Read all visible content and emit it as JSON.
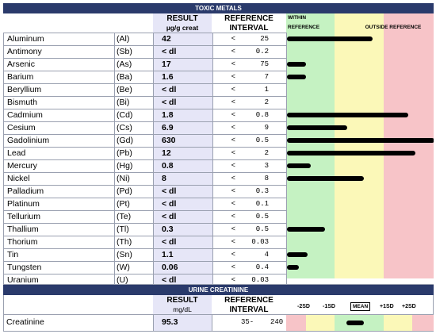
{
  "toxic": {
    "title": "TOXIC METALS",
    "result_label": "RESULT",
    "result_unit": "µg/g creat",
    "ref_label": "REFERENCE",
    "ref_label2": "INTERVAL",
    "within_label": "WITHIN",
    "within_label2": "REFERENCE",
    "outside_label": "OUTSIDE REFERENCE",
    "rows": [
      {
        "name": "Aluminum",
        "symbol": "(Al)",
        "result": "42",
        "cmp": "<",
        "ref": "25",
        "level": 0.58
      },
      {
        "name": "Antimony",
        "symbol": "(Sb)",
        "result": "< dl",
        "cmp": "<",
        "ref": "0.2",
        "level": 0
      },
      {
        "name": "Arsenic",
        "symbol": "(As)",
        "result": "17",
        "cmp": "<",
        "ref": "75",
        "level": 0.13
      },
      {
        "name": "Barium",
        "symbol": "(Ba)",
        "result": "1.6",
        "cmp": "<",
        "ref": "7",
        "level": 0.13
      },
      {
        "name": "Beryllium",
        "symbol": "(Be)",
        "result": "< dl",
        "cmp": "<",
        "ref": "1",
        "level": 0
      },
      {
        "name": "Bismuth",
        "symbol": "(Bi)",
        "result": "< dl",
        "cmp": "<",
        "ref": "2",
        "level": 0
      },
      {
        "name": "Cadmium",
        "symbol": "(Cd)",
        "result": "1.8",
        "cmp": "<",
        "ref": "0.8",
        "level": 0.82
      },
      {
        "name": "Cesium",
        "symbol": "(Cs)",
        "result": "6.9",
        "cmp": "<",
        "ref": "9",
        "level": 0.41
      },
      {
        "name": "Gadolinium",
        "symbol": "(Gd)",
        "result": "630",
        "cmp": "<",
        "ref": "0.5",
        "level": 1.0
      },
      {
        "name": "Lead",
        "symbol": "(Pb)",
        "result": "12",
        "cmp": "<",
        "ref": "2",
        "level": 0.87
      },
      {
        "name": "Mercury",
        "symbol": "(Hg)",
        "result": "0.8",
        "cmp": "<",
        "ref": "3",
        "level": 0.16
      },
      {
        "name": "Nickel",
        "symbol": "(Ni)",
        "result": "8",
        "cmp": "<",
        "ref": "8",
        "level": 0.52
      },
      {
        "name": "Palladium",
        "symbol": "(Pd)",
        "result": "< dl",
        "cmp": "<",
        "ref": "0.3",
        "level": 0
      },
      {
        "name": "Platinum",
        "symbol": "(Pt)",
        "result": "< dl",
        "cmp": "<",
        "ref": "0.1",
        "level": 0
      },
      {
        "name": "Tellurium",
        "symbol": "(Te)",
        "result": "< dl",
        "cmp": "<",
        "ref": "0.5",
        "level": 0
      },
      {
        "name": "Thallium",
        "symbol": "(Tl)",
        "result": "0.3",
        "cmp": "<",
        "ref": "0.5",
        "level": 0.26
      },
      {
        "name": "Thorium",
        "symbol": "(Th)",
        "result": "< dl",
        "cmp": "<",
        "ref": "0.03",
        "level": 0
      },
      {
        "name": "Tin",
        "symbol": "(Sn)",
        "result": "1.1",
        "cmp": "<",
        "ref": "4",
        "level": 0.14
      },
      {
        "name": "Tungsten",
        "symbol": "(W)",
        "result": "0.06",
        "cmp": "<",
        "ref": "0.4",
        "level": 0.08
      },
      {
        "name": "Uranium",
        "symbol": "(U)",
        "result": "< dl",
        "cmp": "<",
        "ref": "0.03",
        "level": 0
      }
    ]
  },
  "creatinine": {
    "title": "URINE CREATININE",
    "result_label": "RESULT",
    "result_unit": "mg/dL",
    "ref_label": "REFERENCE",
    "ref_label2": "INTERVAL",
    "scale": [
      "-2SD",
      "-1SD",
      "MEAN",
      "+1SD",
      "+2SD"
    ],
    "row": {
      "name": "Creatinine",
      "result": "95.3",
      "ref_low": "35-",
      "ref_high": "240",
      "level": 0.47
    }
  },
  "colors": {
    "header_bg": "#2a3a6b",
    "result_bg": "#e6e6f7",
    "within": "#c5f2c2",
    "yellow": "#fbf8b8",
    "red": "#f7c4c8"
  }
}
